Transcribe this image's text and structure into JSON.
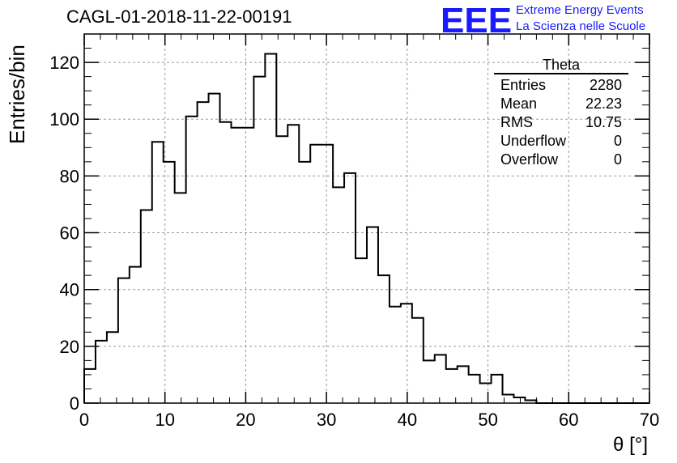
{
  "header": {
    "title": "CAGL-01-2018-11-22-00191",
    "logo_letters": "EEE",
    "logo_line1": "Extreme Energy Events",
    "logo_line2": "La Scienza nelle Scuole"
  },
  "colors": {
    "logo": "#1a1aff",
    "line": "#000000",
    "grid": "#9a9a9a"
  },
  "stats_box": {
    "title": "Theta",
    "rows": [
      {
        "label": "Entries",
        "value": "2280"
      },
      {
        "label": "Mean",
        "value": "22.23"
      },
      {
        "label": "RMS",
        "value": "10.75"
      },
      {
        "label": "Underflow",
        "value": "0"
      },
      {
        "label": "Overflow",
        "value": "0"
      }
    ]
  },
  "chart_data": {
    "type": "histogram",
    "xlabel": "θ [°]",
    "ylabel": "Entries/bin",
    "xlim": [
      0,
      70
    ],
    "ylim": [
      0,
      130
    ],
    "bin_width": 1.4,
    "xticks": [
      0,
      10,
      20,
      30,
      40,
      50,
      60,
      70
    ],
    "yticks": [
      0,
      20,
      40,
      60,
      80,
      100,
      120
    ],
    "grid": true,
    "values": [
      12,
      22,
      25,
      44,
      48,
      68,
      92,
      85,
      74,
      101,
      106,
      109,
      99,
      97,
      97,
      115,
      123,
      94,
      98,
      85,
      91,
      91,
      76,
      81,
      51,
      62,
      45,
      34,
      35,
      30,
      15,
      17,
      12,
      13,
      10,
      7,
      10,
      3,
      2,
      1,
      0,
      0,
      0,
      0,
      0,
      0,
      0,
      0,
      0,
      0
    ]
  }
}
